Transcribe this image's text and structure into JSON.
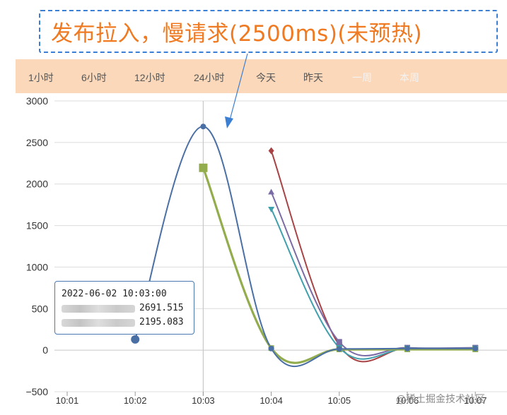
{
  "callout": {
    "text": "发布拉入，慢请求(2500ms)(未预热)"
  },
  "range_tabs": [
    "1小时",
    "6小时",
    "12小时",
    "24小时",
    "今天",
    "昨天",
    "一周",
    "本周"
  ],
  "colors": {
    "series_blue": "#4a6fa5",
    "series_red": "#a84345",
    "series_green": "#93ad4e",
    "series_purple": "#7a6ba6",
    "series_teal": "#3fa0ad",
    "range_bar_bg": "#fbd8ba",
    "callout_border": "#3b7fd4",
    "callout_text": "#ef7a22"
  },
  "tooltip": {
    "time": "2022-06-02 10:03:00",
    "rows": [
      {
        "value": "2691.515"
      },
      {
        "value": "2195.083"
      }
    ]
  },
  "watermark": "@稀土掘金技术社区",
  "chart_data": {
    "type": "line",
    "x_categories": [
      "10:01",
      "10:02",
      "10:03",
      "10:04",
      "10:05",
      "10:06",
      "10:07"
    ],
    "ylim": [
      -500,
      3000
    ],
    "yticks": [
      -500,
      0,
      500,
      1000,
      1500,
      2000,
      2500,
      3000
    ],
    "grid": true,
    "series": [
      {
        "color_key": "series_blue",
        "marker": "circle",
        "points": [
          [
            "10:02",
            130
          ],
          [
            "10:03",
            2692
          ],
          [
            "10:04",
            20
          ],
          [
            "10:05",
            15
          ],
          [
            "10:06",
            20
          ],
          [
            "10:07",
            20
          ]
        ]
      },
      {
        "color_key": "series_green",
        "marker": "square",
        "points": [
          [
            "10:03",
            2195
          ],
          [
            "10:04",
            25
          ],
          [
            "10:05",
            10
          ],
          [
            "10:06",
            10
          ],
          [
            "10:07",
            10
          ]
        ]
      },
      {
        "color_key": "series_red",
        "marker": "diamond",
        "points": [
          [
            "10:04",
            2400
          ],
          [
            "10:05",
            60
          ],
          [
            "10:06",
            25
          ],
          [
            "10:07",
            25
          ]
        ]
      },
      {
        "color_key": "series_purple",
        "marker": "triangle-up",
        "points": [
          [
            "10:04",
            1900
          ],
          [
            "10:05",
            100
          ],
          [
            "10:06",
            30
          ],
          [
            "10:07",
            30
          ]
        ]
      },
      {
        "color_key": "series_teal",
        "marker": "triangle-down",
        "points": [
          [
            "10:04",
            1700
          ],
          [
            "10:05",
            30
          ],
          [
            "10:06",
            20
          ],
          [
            "10:07",
            20
          ]
        ]
      }
    ]
  }
}
